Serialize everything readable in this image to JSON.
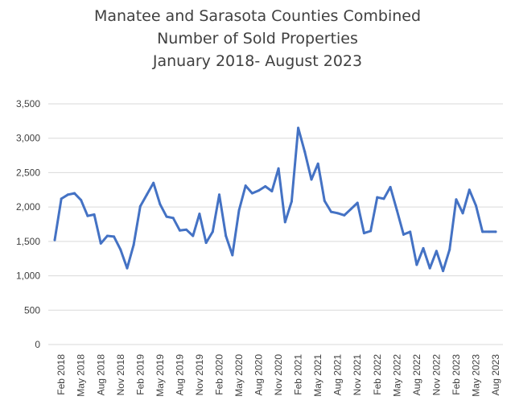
{
  "chart_data": {
    "type": "line",
    "title": [
      "Manatee and Sarasota Counties Combined",
      "Number of Sold Properties",
      "January 2018- August 2023"
    ],
    "xlabel": "",
    "ylabel": "",
    "ylim": [
      0,
      3500
    ],
    "yticks": [
      "0",
      "500",
      "1,000",
      "1,500",
      "2,000",
      "2,500",
      "3,000",
      "3,500"
    ],
    "grid": true,
    "legend": "none",
    "x_tick_labels": [
      "Feb 2018",
      "May 2018",
      "Aug 2018",
      "Nov 2018",
      "Feb 2019",
      "May 2019",
      "Aug 2019",
      "Nov 2019",
      "Feb 2020",
      "May 2020",
      "Aug 2020",
      "Nov 2020",
      "Feb 2021",
      "May 2021",
      "Aug 2021",
      "Nov 2021",
      "Feb 2022",
      "May 2022",
      "Aug 2022",
      "Nov 2022",
      "Feb 2023",
      "May 2023",
      "Aug 2023"
    ],
    "series": [
      {
        "color": "#4472C4",
        "x": [
          "Jan 2018",
          "Feb 2018",
          "Mar 2018",
          "Apr 2018",
          "May 2018",
          "Jun 2018",
          "Jul 2018",
          "Aug 2018",
          "Sep 2018",
          "Oct 2018",
          "Nov 2018",
          "Dec 2018",
          "Jan 2019",
          "Feb 2019",
          "Mar 2019",
          "Apr 2019",
          "May 2019",
          "Jun 2019",
          "Jul 2019",
          "Aug 2019",
          "Sep 2019",
          "Oct 2019",
          "Nov 2019",
          "Dec 2019",
          "Jan 2020",
          "Feb 2020",
          "Mar 2020",
          "Apr 2020",
          "May 2020",
          "Jun 2020",
          "Jul 2020",
          "Aug 2020",
          "Sep 2020",
          "Oct 2020",
          "Nov 2020",
          "Dec 2020",
          "Jan 2021",
          "Feb 2021",
          "Mar 2021",
          "Apr 2021",
          "May 2021",
          "Jun 2021",
          "Jul 2021",
          "Aug 2021",
          "Sep 2021",
          "Oct 2021",
          "Nov 2021",
          "Dec 2021",
          "Jan 2022",
          "Feb 2022",
          "Mar 2022",
          "Apr 2022",
          "May 2022",
          "Jun 2022",
          "Jul 2022",
          "Aug 2022",
          "Sep 2022",
          "Oct 2022",
          "Nov 2022",
          "Dec 2022",
          "Jan 2023",
          "Feb 2023",
          "Mar 2023",
          "Apr 2023",
          "May 2023",
          "Jun 2023",
          "Jul 2023",
          "Aug 2023"
        ],
        "values": [
          1520,
          2120,
          2180,
          2200,
          2100,
          1870,
          1890,
          1470,
          1580,
          1570,
          1380,
          1110,
          1450,
          2010,
          2180,
          2350,
          2040,
          1860,
          1840,
          1660,
          1670,
          1580,
          1900,
          1480,
          1640,
          2180,
          1580,
          1300,
          1950,
          2310,
          2200,
          2240,
          2300,
          2230,
          2560,
          1780,
          2080,
          3150,
          2800,
          2400,
          2630,
          2090,
          1930,
          1910,
          1880,
          1970,
          2060,
          1620,
          1650,
          2140,
          2120,
          2290,
          1950,
          1600,
          1640,
          1160,
          1400,
          1110,
          1360,
          1070,
          1380,
          2110,
          1910,
          2250,
          2020,
          1640,
          1640,
          1640
        ]
      }
    ]
  }
}
